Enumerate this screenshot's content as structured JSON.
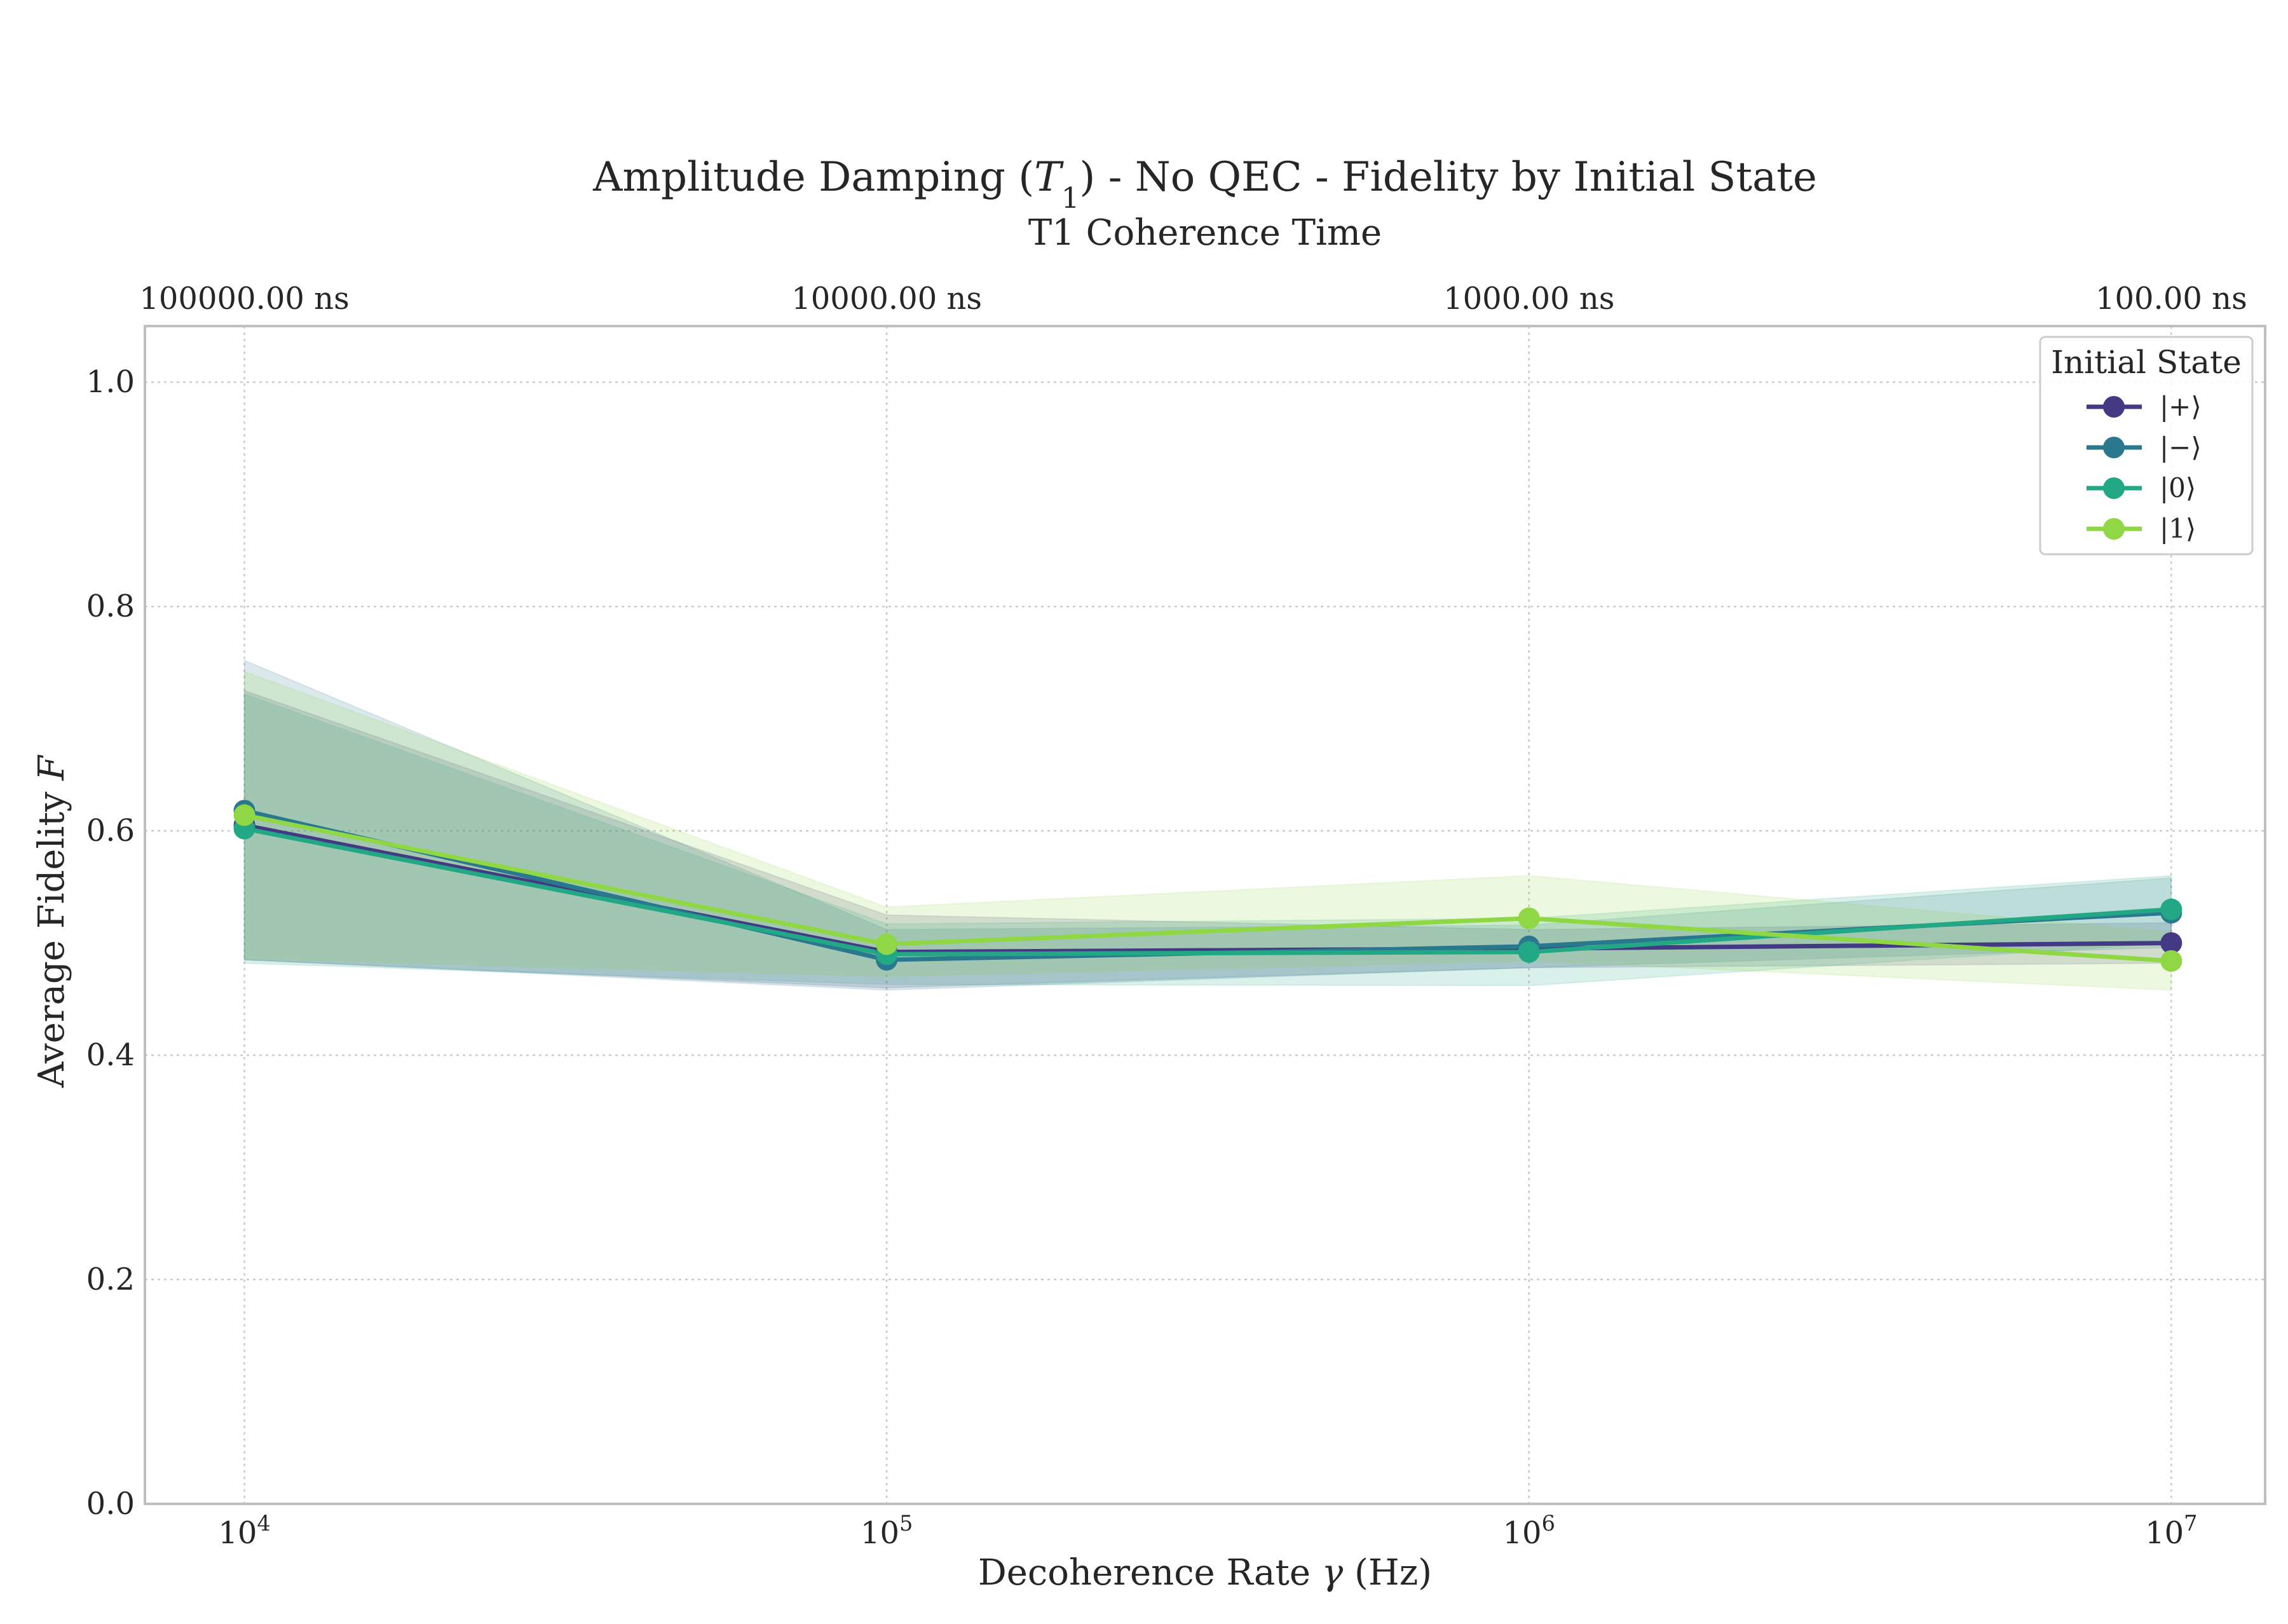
{
  "chart_data": {
    "type": "line",
    "title": "Amplitude Damping (T1) - No QEC - Fidelity by Initial State",
    "subtitle": "T1 Coherence Time",
    "xlabel": "Decoherence Rate γ (Hz)",
    "ylabel": "Average Fidelity F",
    "xscale": "log",
    "xlim": [
      7000,
      14000000
    ],
    "ylim": [
      0.0,
      1.05
    ],
    "x": [
      10000,
      100000,
      1000000,
      10000000
    ],
    "x_tick_labels": [
      "10^4",
      "10^5",
      "10^6",
      "10^7"
    ],
    "y_ticks": [
      0.0,
      0.2,
      0.4,
      0.6,
      0.8,
      1.0
    ],
    "y_tick_labels": [
      "0.0",
      "0.2",
      "0.4",
      "0.6",
      "0.8",
      "1.0"
    ],
    "top_axis": {
      "label": "T1 Coherence Time",
      "tick_labels": [
        "100000.00 ns",
        "10000.00 ns",
        "1000.00 ns",
        "100.00 ns"
      ]
    },
    "grid": true,
    "legend": {
      "title": "Initial State",
      "placement": "top-right"
    },
    "series": [
      {
        "name": "|+⟩",
        "color": "#443983",
        "values": [
          0.605,
          0.492,
          0.495,
          0.5
        ],
        "lower": [
          0.485,
          0.46,
          0.478,
          0.482
        ],
        "upper": [
          0.725,
          0.525,
          0.512,
          0.518
        ]
      },
      {
        "name": "|−⟩",
        "color": "#2a788e",
        "values": [
          0.618,
          0.485,
          0.497,
          0.527
        ],
        "lower": [
          0.485,
          0.458,
          0.478,
          0.496
        ],
        "upper": [
          0.752,
          0.512,
          0.516,
          0.558
        ]
      },
      {
        "name": "|0⟩",
        "color": "#22a884",
        "values": [
          0.602,
          0.49,
          0.492,
          0.53
        ],
        "lower": [
          0.482,
          0.463,
          0.462,
          0.5
        ],
        "upper": [
          0.722,
          0.517,
          0.522,
          0.56
        ]
      },
      {
        "name": "|1⟩",
        "color": "#8fd744",
        "values": [
          0.614,
          0.499,
          0.522,
          0.484
        ],
        "lower": [
          0.486,
          0.47,
          0.484,
          0.458
        ],
        "upper": [
          0.742,
          0.532,
          0.56,
          0.51
        ]
      }
    ]
  }
}
